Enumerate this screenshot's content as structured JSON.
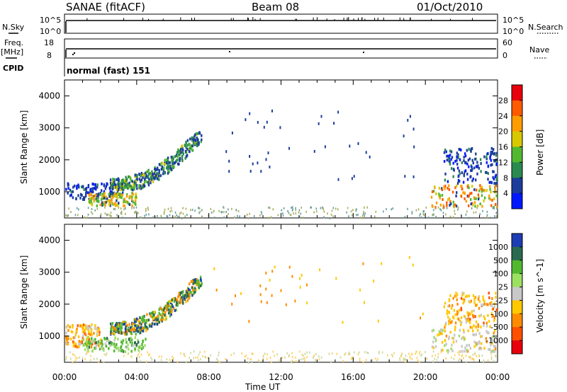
{
  "header": {
    "title_left": "SANAE (fitACF)",
    "title_center": "Beam 08",
    "title_right": "01/Oct/2010"
  },
  "top_panels": {
    "nsky_label": "N.Sky",
    "nsky_ticks": [
      "10^5",
      "10^0"
    ],
    "nsearch_label": "N.Search",
    "nsearch_ticks": [
      "10^5",
      "10^0"
    ],
    "freq_label": "Freq.",
    "freq_unit": "[MHz]",
    "freq_ticks": [
      "18",
      "8"
    ],
    "nave_label": "Nave",
    "nave_ticks": [
      "60",
      "0"
    ],
    "cpid_label": "CPID",
    "cpid_value": "normal (fast) 151"
  },
  "chart_data": [
    {
      "type": "heatmap",
      "name": "Power",
      "ylabel": "Slant Range [km]",
      "yticks": [
        "4000",
        "3000",
        "2000",
        "1000"
      ],
      "ylim": [
        180,
        4500
      ],
      "xlim": [
        0,
        24
      ],
      "colorbar_label": "Power [dB]",
      "colorbar_ticks": [
        "28",
        "24",
        "20",
        "16",
        "12",
        "8",
        "4"
      ],
      "colorbar_colors": [
        "#e8000b",
        "#ff5a00",
        "#ff9d00",
        "#d8c800",
        "#52b830",
        "#2a8a50",
        "#1c3d9c",
        "#0018ff"
      ],
      "regions": [
        {
          "x": [
            0.0,
            3.2
          ],
          "y": [
            800,
            1300
          ],
          "level": "low"
        },
        {
          "x": [
            1.3,
            4.0
          ],
          "y": [
            600,
            1000
          ],
          "level": "mid"
        },
        {
          "x": [
            2.5,
            7.6
          ],
          "y": [
            1100,
            2900
          ],
          "level": "mixed"
        },
        {
          "x": [
            20.3,
            24.0
          ],
          "y": [
            550,
            1250
          ],
          "level": "high"
        },
        {
          "x": [
            21.0,
            24.0
          ],
          "y": [
            1300,
            2400
          ],
          "level": "low"
        }
      ]
    },
    {
      "type": "heatmap",
      "name": "Velocity",
      "ylabel": "Slant Range [km]",
      "yticks": [
        "4000",
        "3000",
        "2000",
        "1000"
      ],
      "ylim": [
        180,
        4500
      ],
      "xlim": [
        0,
        24
      ],
      "colorbar_label": "Velocity [m s^-1]",
      "colorbar_ticks": [
        "1000",
        "500",
        "100",
        "25",
        "-25",
        "-100",
        "-500",
        "-1000"
      ],
      "colorbar_colors": [
        "#1c3db4",
        "#2a6a50",
        "#52b830",
        "#9be060",
        "#c8c8c8",
        "#ffc800",
        "#ff8c00",
        "#ff5000",
        "#e8000b"
      ],
      "regions": [
        {
          "x": [
            0.0,
            2.0
          ],
          "y": [
            700,
            1400
          ],
          "level": "negative"
        },
        {
          "x": [
            1.0,
            4.5
          ],
          "y": [
            550,
            1000
          ],
          "level": "positive"
        },
        {
          "x": [
            2.5,
            7.6
          ],
          "y": [
            1100,
            2900
          ],
          "level": "mixed"
        },
        {
          "x": [
            20.3,
            24.0
          ],
          "y": [
            550,
            1250
          ],
          "level": "near-zero"
        },
        {
          "x": [
            21.0,
            24.0
          ],
          "y": [
            1300,
            2400
          ],
          "level": "negative"
        }
      ]
    }
  ],
  "x_axis": {
    "ticks": [
      "00:00",
      "04:00",
      "08:00",
      "12:00",
      "16:00",
      "20:00",
      "00:00"
    ],
    "label": "Time UT"
  }
}
